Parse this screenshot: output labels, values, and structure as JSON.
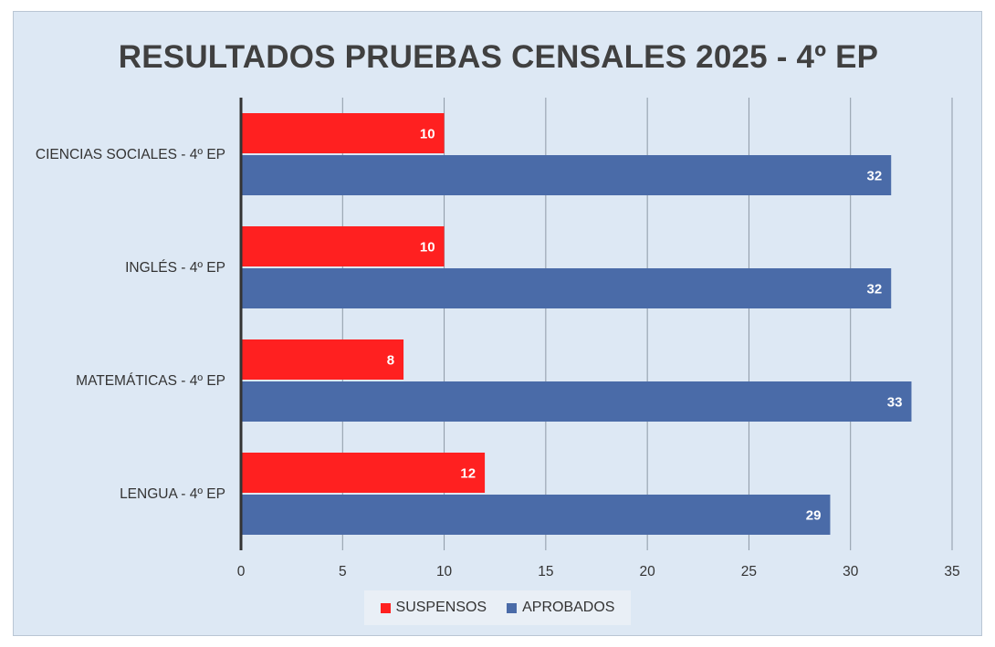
{
  "chart_data": {
    "type": "bar",
    "orientation": "horizontal",
    "title": "RESULTADOS PRUEBAS CENSALES 2025 - 4º EP",
    "categories": [
      "CIENCIAS SOCIALES - 4º EP",
      "INGLÉS - 4º EP",
      "MATEMÁTICAS - 4º EP",
      "LENGUA - 4º EP"
    ],
    "series": [
      {
        "name": "SUSPENSOS",
        "color": "#ff2020",
        "values": [
          10,
          10,
          8,
          12
        ]
      },
      {
        "name": "APROBADOS",
        "color": "#4a6ba8",
        "values": [
          32,
          32,
          33,
          29
        ]
      }
    ],
    "xlim": [
      0,
      35
    ],
    "xticks": [
      0,
      5,
      10,
      15,
      20,
      25,
      30,
      35
    ],
    "grid": true,
    "legend_position": "bottom"
  }
}
